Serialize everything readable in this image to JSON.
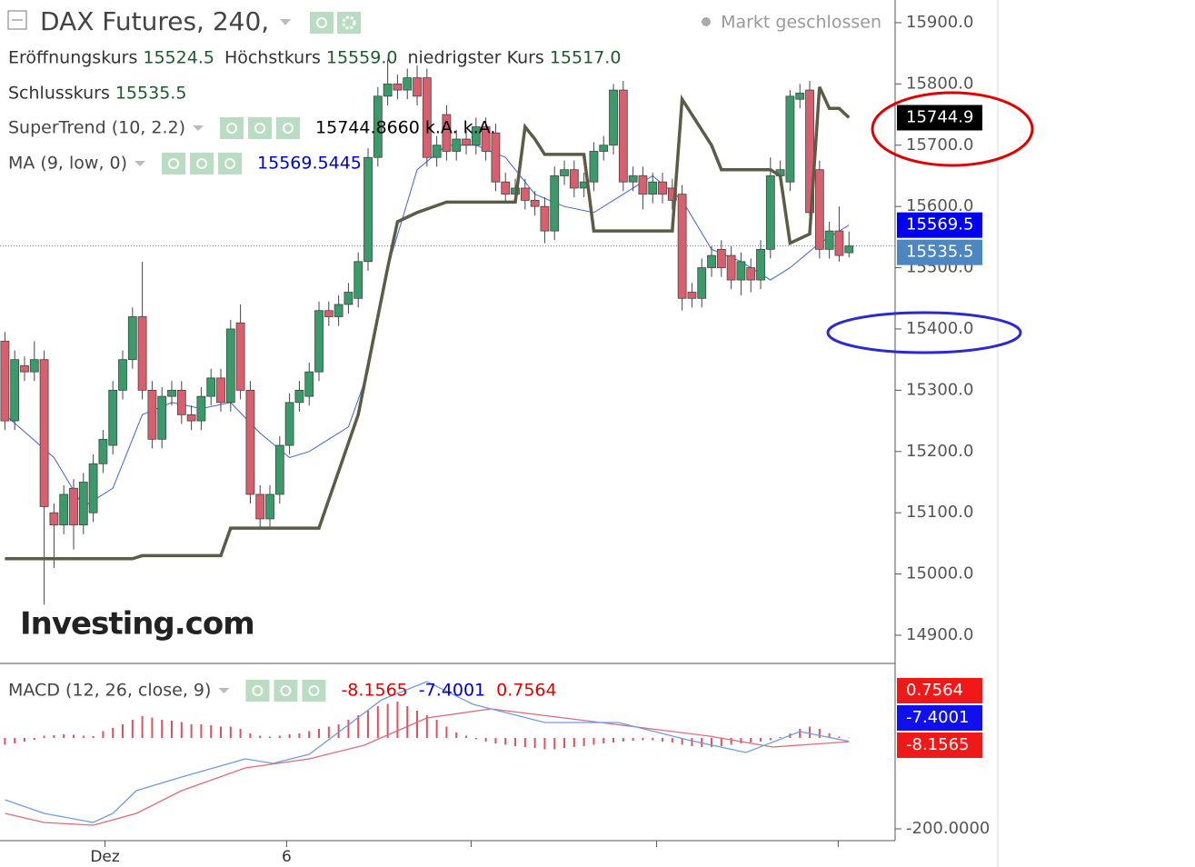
{
  "chart_data": {
    "type": "candlestick",
    "title": "DAX Futures, 240,",
    "status": "Markt geschlossen",
    "watermark": "Investing.com",
    "xlim": [
      -0.5,
      90.7
    ],
    "xticks": [
      {
        "value": 10.2,
        "label": "Dez"
      },
      {
        "value": 28.7,
        "label": "6"
      },
      {
        "value": 47.5,
        "label": null
      },
      {
        "value": 66.4,
        "label": null
      },
      {
        "value": 84.9,
        "label": null
      }
    ],
    "ylim": [
      14857,
      15937
    ],
    "yticks": [
      {
        "value": 14900,
        "label": "14900.0"
      },
      {
        "value": 15000,
        "label": "15000.0"
      },
      {
        "value": 15100,
        "label": "15100.0"
      },
      {
        "value": 15200,
        "label": "15200.0"
      },
      {
        "value": 15300,
        "label": "15300.0"
      },
      {
        "value": 15400,
        "label": "15400.0"
      },
      {
        "value": 15500,
        "label": "15500.0"
      },
      {
        "value": 15600,
        "label": "15600.0"
      },
      {
        "value": 15700,
        "label": "15700.0"
      },
      {
        "value": 15800,
        "label": "15800.0"
      },
      {
        "value": 15900,
        "label": "15900.0"
      }
    ],
    "up_color": "#3a9a6a",
    "down_color": "#d8606e",
    "ohlc_legend": {
      "labels": [
        "Eröffnungskurs",
        "Höchstkurs",
        "niedrigster Kurs",
        "Schlusskurs"
      ],
      "values": [
        15524.5,
        15559,
        15517,
        15535.5
      ],
      "value_labels": [
        "15524.5",
        "15559.0",
        "15517.0",
        "15535.5"
      ]
    },
    "candles": {
      "open": [
        15380,
        15250,
        15340,
        15330,
        15350,
        15100,
        15080,
        15140,
        15080,
        15100,
        15180,
        15210,
        15300,
        15350,
        15420,
        15300,
        15220,
        15290,
        15300,
        15260,
        15250,
        15290,
        15320,
        15280,
        15410,
        15300,
        15130,
        15090,
        15130,
        15210,
        15280,
        15290,
        15330,
        15430,
        15420,
        15440,
        15450,
        15510,
        15680,
        15780,
        15800,
        15790,
        15810,
        15810,
        15680,
        15750,
        15690,
        15710,
        15700,
        15730,
        15720,
        15640,
        15620,
        15630,
        15610,
        15600,
        15560,
        15650,
        15660,
        15630,
        15640,
        15690,
        15700,
        15790,
        15640,
        15650,
        15620,
        15640,
        15630,
        15620,
        15460,
        15450,
        15500,
        15530,
        15520,
        15480,
        15500,
        15480,
        15530,
        15650,
        15640,
        15775,
        15790,
        15660,
        15530,
        15560,
        15524.5
      ],
      "high": [
        15395,
        15365,
        15355,
        15380,
        15365,
        15115,
        15145,
        15155,
        15165,
        15195,
        15235,
        15315,
        15365,
        15435,
        15510,
        15315,
        15305,
        15315,
        15315,
        15275,
        15305,
        15335,
        15335,
        15415,
        15440,
        15315,
        15145,
        15145,
        15225,
        15295,
        15315,
        15345,
        15445,
        15445,
        15455,
        15475,
        15525,
        15695,
        15795,
        15840,
        15815,
        15825,
        15830,
        15825,
        15715,
        15765,
        15725,
        15725,
        15745,
        15745,
        15735,
        15655,
        15645,
        15645,
        15625,
        15615,
        15665,
        15675,
        15675,
        15655,
        15705,
        15715,
        15800,
        15805,
        15665,
        15665,
        15655,
        15655,
        15645,
        15635,
        15475,
        15515,
        15535,
        15545,
        15535,
        15525,
        15515,
        15545,
        15680,
        15675,
        15790,
        15800,
        15805,
        15675,
        15575,
        15600,
        15559
      ],
      "low": [
        15235,
        15235,
        15315,
        15315,
        14950,
        15010,
        15065,
        15040,
        15065,
        15085,
        15165,
        15195,
        15285,
        15335,
        15285,
        15205,
        15205,
        15275,
        15245,
        15235,
        15235,
        15275,
        15265,
        15265,
        15285,
        15115,
        15075,
        15075,
        15115,
        15195,
        15265,
        15275,
        15315,
        15405,
        15405,
        15425,
        15435,
        15495,
        15665,
        15765,
        15775,
        15775,
        15765,
        15665,
        15665,
        15675,
        15675,
        15685,
        15685,
        15675,
        15625,
        15605,
        15605,
        15595,
        15585,
        15540,
        15545,
        15635,
        15615,
        15615,
        15625,
        15675,
        15685,
        15625,
        15625,
        15595,
        15605,
        15605,
        15595,
        15430,
        15435,
        15435,
        15485,
        15485,
        15465,
        15455,
        15460,
        15465,
        15515,
        15635,
        15625,
        15760,
        15575,
        15515,
        15515,
        15510,
        15517
      ],
      "close": [
        15250,
        15350,
        15330,
        15350,
        15110,
        15080,
        15130,
        15080,
        15150,
        15180,
        15220,
        15300,
        15350,
        15420,
        15300,
        15220,
        15290,
        15300,
        15260,
        15250,
        15290,
        15320,
        15280,
        15400,
        15300,
        15130,
        15090,
        15130,
        15210,
        15280,
        15300,
        15330,
        15430,
        15420,
        15440,
        15460,
        15510,
        15680,
        15780,
        15800,
        15790,
        15810,
        15780,
        15680,
        15700,
        15690,
        15710,
        15700,
        15730,
        15690,
        15640,
        15620,
        15630,
        15610,
        15600,
        15560,
        15650,
        15660,
        15630,
        15640,
        15690,
        15700,
        15790,
        15640,
        15650,
        15620,
        15640,
        15620,
        15610,
        15450,
        15450,
        15500,
        15520,
        15500,
        15480,
        15510,
        15480,
        15530,
        15650,
        15660,
        15780,
        15785,
        15590,
        15530,
        15560,
        15520,
        15535.5
      ]
    },
    "indicators": [
      {
        "name": "SuperTrend (10, 2.2)",
        "color": "#5c5c46",
        "legend_value": 15744.866,
        "legend_value_label": "15744.8660",
        "legend_extra": [
          "k.A.",
          "k.A."
        ],
        "tag_label": "15744.9",
        "tag_color": "#000000",
        "x": [
          0,
          13,
          14,
          22,
          23,
          32,
          36,
          39,
          40,
          42,
          45,
          52,
          53,
          54,
          55,
          59,
          60,
          68,
          69,
          72,
          73,
          78,
          79,
          80,
          82,
          83,
          84,
          85,
          86
        ],
        "values": [
          15025,
          15025,
          15030,
          15030,
          15075,
          15075,
          15260,
          15500,
          15575,
          15590,
          15607,
          15607,
          15730,
          15710,
          15685,
          15685,
          15560,
          15560,
          15775,
          15700,
          15660,
          15660,
          15650,
          15540,
          15555,
          15795,
          15760,
          15760,
          15745
        ]
      },
      {
        "name": "MA (9, low, 0)",
        "color": "#3f63d8",
        "legend_value": 15569.5445,
        "tag_label": "15569.5",
        "tag_color": "#0000ee",
        "x": [
          0,
          5,
          8,
          11,
          14,
          17,
          20,
          23,
          26,
          29,
          31,
          33,
          35,
          37,
          39,
          42,
          45,
          48,
          51,
          54,
          57,
          60,
          63,
          66,
          69,
          72,
          75,
          78,
          80,
          83,
          86
        ],
        "values": [
          15260,
          15190,
          15110,
          15140,
          15260,
          15280,
          15270,
          15280,
          15230,
          15190,
          15200,
          15220,
          15240,
          15330,
          15500,
          15660,
          15700,
          15700,
          15680,
          15620,
          15600,
          15590,
          15620,
          15650,
          15610,
          15530,
          15510,
          15480,
          15500,
          15540,
          15569.5445
        ]
      }
    ],
    "macd": {
      "name": "MACD (12, 26, close, 9)",
      "ylim": [
        -226,
        158
      ],
      "yticks": [
        {
          "value": -200,
          "label": "-200.0000"
        }
      ],
      "legend_values": [
        -8.1565,
        -7.4001,
        0.7564
      ],
      "legend_colors": [
        "#e00000",
        "#0000cc",
        "#e00000"
      ],
      "tag_colors": [
        "#f01818",
        "#1010ee",
        "#f01818"
      ],
      "lines": [
        {
          "color": "#e06a78",
          "x": [
            0,
            4,
            9,
            13.4,
            18,
            24.5,
            31,
            36.6,
            43,
            49.5,
            57,
            64.4,
            71.8,
            78.2,
            86
          ],
          "values": [
            -166,
            -186,
            -192,
            -166,
            -116,
            -66,
            -46,
            -16,
            44,
            64,
            44,
            24,
            4,
            -20,
            -8.1565
          ]
        },
        {
          "color": "#6f9be0",
          "x": [
            0,
            4,
            9,
            11,
            13.4,
            18,
            24.5,
            27.3,
            31,
            34.7,
            38.4,
            43,
            47.7,
            55,
            62.5,
            69.9,
            75.5,
            81,
            86
          ],
          "values": [
            -136,
            -166,
            -186,
            -166,
            -116,
            -86,
            -46,
            -56,
            -36,
            24,
            84,
            124,
            74,
            34,
            34,
            -6,
            -32,
            14,
            -7.4001
          ]
        }
      ],
      "histogram": {
        "color": "#e0505f",
        "values": [
          -15,
          -12,
          -8,
          -4,
          5,
          6,
          8,
          7,
          5,
          4,
          15,
          22,
          30,
          40,
          48,
          45,
          40,
          38,
          35,
          30,
          30,
          28,
          25,
          25,
          20,
          10,
          5,
          3,
          5,
          8,
          10,
          15,
          20,
          25,
          30,
          40,
          50,
          60,
          70,
          75,
          80,
          70,
          60,
          50,
          40,
          25,
          12,
          5,
          -3,
          -8,
          -12,
          -15,
          -18,
          -20,
          -22,
          -25,
          -25,
          -22,
          -20,
          -18,
          -15,
          -12,
          -10,
          -8,
          -6,
          -5,
          -5,
          -8,
          -10,
          -15,
          -18,
          -20,
          -20,
          -18,
          -15,
          -12,
          -10,
          -8,
          -5,
          2,
          10,
          20,
          25,
          20,
          10,
          3,
          0.7564
        ]
      }
    }
  }
}
